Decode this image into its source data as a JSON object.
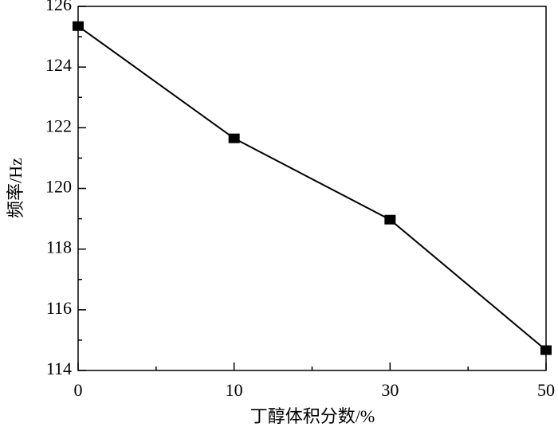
{
  "chart_data": {
    "type": "line",
    "x_label": "丁醇体积分数/%",
    "y_label": "频率/Hz",
    "categories": [
      "0",
      "10",
      "30",
      "50"
    ],
    "series": [
      {
        "color": "#000000",
        "values": [
          125.35,
          121.65,
          118.97,
          114.67
        ]
      }
    ],
    "ylim": [
      114,
      126
    ],
    "yticks": [
      114,
      116,
      118,
      120,
      122,
      124,
      126
    ],
    "grid": false
  }
}
